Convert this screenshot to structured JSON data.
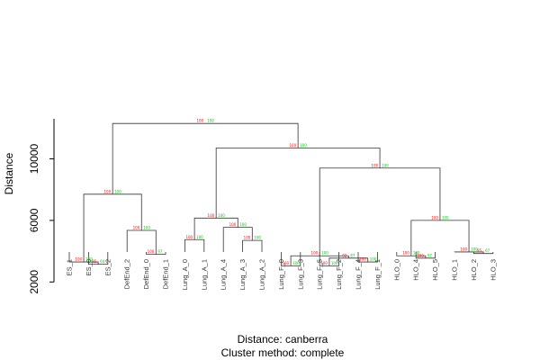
{
  "colors": {
    "au": "#ff0000",
    "bp": "#00cc00",
    "line": "#333333"
  },
  "chart_data": {
    "type": "dendrogram",
    "ylabel": "Distance",
    "ylim": [
      0,
      13000
    ],
    "yticks": [
      2000,
      6000,
      10000
    ],
    "ytick_labels": [
      "2000",
      "6000",
      "10000"
    ],
    "subtitle_line1": "Distance:  canberra",
    "subtitle_line2": "Cluster method: complete",
    "leaves": [
      "ES_1",
      "ES_0",
      "ES_2",
      "DefEnd_2",
      "DefEnd_0",
      "DefEnd_1",
      "Lung_A_0",
      "Lung_A_1",
      "Lung_A_4",
      "Lung_A_3",
      "Lung_A_2",
      "Lung_F_0",
      "Lung_F_3",
      "Lung_F_5",
      "Lung_F_2",
      "Lung_F_4",
      "Lung_F_1",
      "HLO_0",
      "HLO_4",
      "HLO_5",
      "HLO_1",
      "HLO_2",
      "HLO_3"
    ],
    "merges": [
      {
        "id": "m1",
        "a": {
          "leaf": 1
        },
        "b": {
          "leaf": 2
        },
        "h": 3150,
        "au": "95",
        "bp": "64"
      },
      {
        "id": "m2",
        "a": {
          "leaf": 0
        },
        "b": {
          "node": "m1"
        },
        "h": 3300,
        "au": "100",
        "bp": "100"
      },
      {
        "id": "m3",
        "a": {
          "leaf": 4
        },
        "b": {
          "leaf": 5
        },
        "h": 3800,
        "au": "100",
        "bp": "97"
      },
      {
        "id": "m4",
        "a": {
          "leaf": 3
        },
        "b": {
          "node": "m3"
        },
        "h": 5350,
        "au": "100",
        "bp": "100"
      },
      {
        "id": "m5",
        "a": {
          "node": "m2"
        },
        "b": {
          "node": "m4"
        },
        "h": 7700,
        "au": "100",
        "bp": "100"
      },
      {
        "id": "m6",
        "a": {
          "leaf": 9
        },
        "b": {
          "leaf": 10
        },
        "h": 4700,
        "au": "100",
        "bp": "100"
      },
      {
        "id": "m7",
        "a": {
          "leaf": 8
        },
        "b": {
          "node": "m6"
        },
        "h": 5550,
        "au": "100",
        "bp": "100"
      },
      {
        "id": "m8",
        "a": {
          "leaf": 6
        },
        "b": {
          "leaf": 7
        },
        "h": 4750,
        "au": "100",
        "bp": "100"
      },
      {
        "id": "m9",
        "a": {
          "node": "m8"
        },
        "b": {
          "node": "m7"
        },
        "h": 6150,
        "au": "100",
        "bp": "100"
      },
      {
        "id": "m10",
        "a": {
          "leaf": 11
        },
        "b": {
          "leaf": 12
        },
        "h": 3050,
        "au": "100",
        "bp": "100"
      },
      {
        "id": "m11",
        "a": {
          "leaf": 13
        },
        "b": {
          "leaf": 14
        },
        "h": 3050,
        "au": "100",
        "bp": "100"
      },
      {
        "id": "m12",
        "a": {
          "leaf": 15
        },
        "b": {
          "leaf": 16
        },
        "h": 3300,
        "au": "100",
        "bp": "100"
      },
      {
        "id": "m13",
        "a": {
          "node": "m11"
        },
        "b": {
          "node": "m12"
        },
        "h": 3550,
        "au": "92",
        "bp": "87"
      },
      {
        "id": "m14",
        "a": {
          "node": "m10"
        },
        "b": {
          "node": "m13"
        },
        "h": 3700,
        "au": "100",
        "bp": "100"
      },
      {
        "id": "m15",
        "a": {
          "leaf": 18
        },
        "b": {
          "leaf": 19
        },
        "h": 3550,
        "au": "100",
        "bp": "97"
      },
      {
        "id": "m16",
        "a": {
          "leaf": 17
        },
        "b": {
          "node": "m15"
        },
        "h": 3700,
        "au": "100",
        "bp": "100"
      },
      {
        "id": "m17",
        "a": {
          "leaf": 21
        },
        "b": {
          "leaf": 22
        },
        "h": 3850,
        "au": "95",
        "bp": "67"
      },
      {
        "id": "m18",
        "a": {
          "leaf": 20
        },
        "b": {
          "node": "m17"
        },
        "h": 3950,
        "au": "100",
        "bp": "100"
      },
      {
        "id": "m19",
        "a": {
          "node": "m16"
        },
        "b": {
          "node": "m18"
        },
        "h": 6000,
        "au": "100",
        "bp": "100"
      },
      {
        "id": "m20",
        "a": {
          "node": "m14"
        },
        "b": {
          "node": "m19"
        },
        "h": 9400,
        "au": "100",
        "bp": "100"
      },
      {
        "id": "m21",
        "a": {
          "node": "m9"
        },
        "b": {
          "node": "m20"
        },
        "h": 10700,
        "au": "100",
        "bp": "100"
      },
      {
        "id": "m22",
        "a": {
          "node": "m5"
        },
        "b": {
          "node": "m21"
        },
        "h": 12300,
        "au": "100",
        "bp": "100"
      }
    ]
  }
}
